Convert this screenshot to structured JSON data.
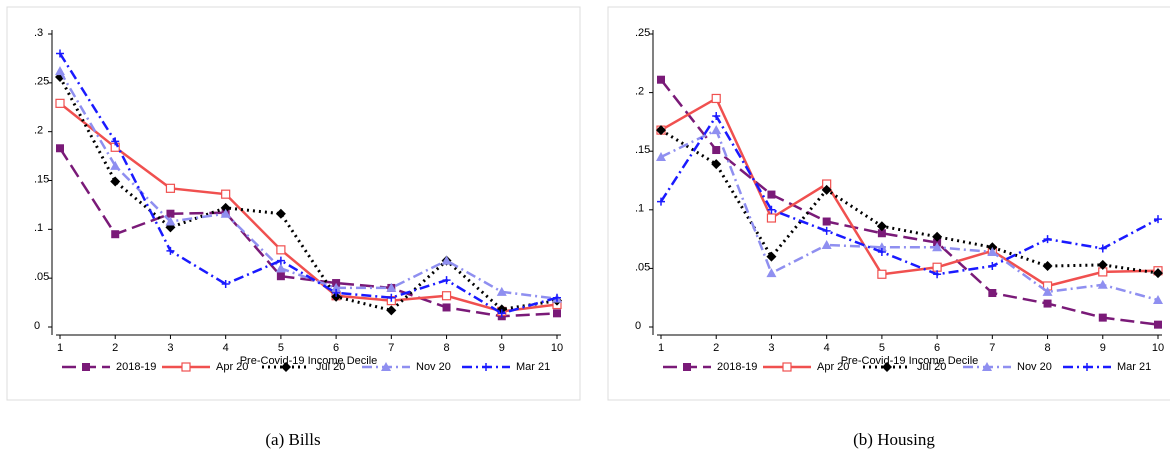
{
  "chart_data": [
    {
      "type": "line",
      "caption": "(a) Bills",
      "x_label": "Pre-Covid-19 Income Decile",
      "x": [
        1,
        2,
        3,
        4,
        5,
        6,
        7,
        8,
        9,
        10
      ],
      "xlim": [
        1,
        10
      ],
      "xticks": [
        1,
        2,
        3,
        4,
        5,
        6,
        7,
        8,
        9,
        10
      ],
      "ylim": [
        0,
        0.3
      ],
      "yticks": [
        0,
        {
          "value": 0.05,
          "label": ".05"
        },
        {
          "value": 0.1,
          "label": ".1"
        },
        {
          "value": 0.15,
          "label": ".15"
        },
        {
          "value": 0.2,
          "label": ".2"
        },
        {
          "value": 0.25,
          "label": ".25"
        },
        {
          "value": 0.3,
          "label": ".3"
        }
      ],
      "legend": "bottom",
      "series": [
        {
          "name": "2018-19",
          "color": "#7a1a78",
          "dash": "long",
          "marker": "square",
          "values": [
            0.183,
            0.095,
            0.116,
            0.117,
            0.052,
            0.045,
            0.04,
            0.02,
            0.011,
            0.014
          ]
        },
        {
          "name": "Apr 20",
          "color": "#f0504f",
          "dash": "solid",
          "marker": "hollow-square",
          "values": [
            0.229,
            0.184,
            0.142,
            0.136,
            0.079,
            0.032,
            0.027,
            0.032,
            0.016,
            0.023
          ]
        },
        {
          "name": "Jul 20",
          "color": "#000000",
          "dash": "dot",
          "marker": "diamond",
          "values": [
            0.256,
            0.149,
            0.102,
            0.122,
            0.116,
            0.031,
            0.017,
            0.068,
            0.018,
            0.027
          ]
        },
        {
          "name": "Nov 20",
          "color": "#8f8ff0",
          "dash": "dashdot",
          "marker": "triangle",
          "values": [
            0.262,
            0.165,
            0.108,
            0.116,
            0.06,
            0.04,
            0.04,
            0.068,
            0.036,
            0.029
          ]
        },
        {
          "name": "Mar 21",
          "color": "#1a1aff",
          "dash": "dashdot",
          "marker": "plus",
          "values": [
            0.28,
            0.19,
            0.078,
            0.044,
            0.068,
            0.035,
            0.03,
            0.048,
            0.014,
            0.03
          ]
        }
      ]
    },
    {
      "type": "line",
      "caption": "(b) Housing",
      "x_label": "Pre-Covid-19 Income Decile",
      "x": [
        1,
        2,
        3,
        4,
        5,
        6,
        7,
        8,
        9,
        10
      ],
      "xlim": [
        1,
        10
      ],
      "xticks": [
        1,
        2,
        3,
        4,
        5,
        6,
        7,
        8,
        9,
        10
      ],
      "ylim": [
        0,
        0.25
      ],
      "yticks": [
        0,
        {
          "value": 0.05,
          "label": ".05"
        },
        {
          "value": 0.1,
          "label": ".1"
        },
        {
          "value": 0.15,
          "label": ".15"
        },
        {
          "value": 0.2,
          "label": ".2"
        },
        {
          "value": 0.25,
          "label": ".25"
        }
      ],
      "legend": "bottom",
      "series": [
        {
          "name": "2018-19",
          "color": "#7a1a78",
          "dash": "long",
          "marker": "square",
          "values": [
            0.211,
            0.151,
            0.113,
            0.09,
            0.08,
            0.072,
            0.029,
            0.02,
            0.008,
            0.002
          ]
        },
        {
          "name": "Apr 20",
          "color": "#f0504f",
          "dash": "solid",
          "marker": "hollow-square",
          "values": [
            0.168,
            0.195,
            0.093,
            0.122,
            0.045,
            0.051,
            0.065,
            0.035,
            0.047,
            0.048
          ]
        },
        {
          "name": "Jul 20",
          "color": "#000000",
          "dash": "dot",
          "marker": "diamond",
          "values": [
            0.168,
            0.139,
            0.06,
            0.117,
            0.086,
            0.077,
            0.068,
            0.052,
            0.053,
            0.046
          ]
        },
        {
          "name": "Nov 20",
          "color": "#8f8ff0",
          "dash": "dashdot",
          "marker": "triangle",
          "values": [
            0.145,
            0.168,
            0.046,
            0.07,
            0.068,
            0.068,
            0.064,
            0.03,
            0.036,
            0.023
          ]
        },
        {
          "name": "Mar 21",
          "color": "#1a1aff",
          "dash": "dashdot",
          "marker": "plus",
          "values": [
            0.107,
            0.18,
            0.1,
            0.082,
            0.064,
            0.045,
            0.052,
            0.075,
            0.067,
            0.092
          ]
        }
      ]
    }
  ]
}
